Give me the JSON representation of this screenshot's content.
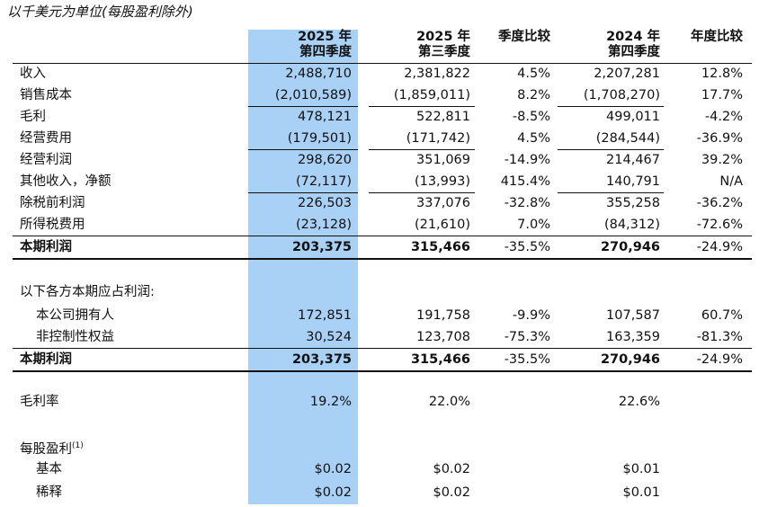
{
  "caption": "以千美元为单位(每股盈利除外)",
  "columns": [
    {
      "line1": "2025 年",
      "line2": "第四季度"
    },
    {
      "line1": "2025 年",
      "line2": "第三季度"
    },
    {
      "line1": "季度比较",
      "line2": ""
    },
    {
      "line1": "2024 年",
      "line2": "第四季度"
    },
    {
      "line1": "年度比较",
      "line2": ""
    }
  ],
  "rows": [
    {
      "label": "收入",
      "v": [
        "2,488,710",
        "2,381,822",
        "4.5%",
        "2,207,281",
        "12.8%"
      ]
    },
    {
      "label": "销售成本",
      "v": [
        "(2,010,589)",
        "(1,859,011)",
        "8.2%",
        "(1,708,270)",
        "17.7%"
      ]
    },
    {
      "label": "毛利",
      "v": [
        "478,121",
        "522,811",
        "-8.5%",
        "499,011",
        "-4.2%"
      ]
    },
    {
      "label": "经营费用",
      "v": [
        "(179,501)",
        "(171,742)",
        "4.5%",
        "(284,544)",
        "-36.9%"
      ]
    },
    {
      "label": "经营利润",
      "v": [
        "298,620",
        "351,069",
        "-14.9%",
        "214,467",
        "39.2%"
      ]
    },
    {
      "label": "其他收入，净额",
      "v": [
        "(72,117)",
        "(13,993)",
        "415.4%",
        "140,791",
        "N/A"
      ]
    },
    {
      "label": "除税前利润",
      "v": [
        "226,503",
        "337,076",
        "-32.8%",
        "355,258",
        "-36.2%"
      ]
    },
    {
      "label": "所得税费用",
      "v": [
        "(23,128)",
        "(21,610)",
        "7.0%",
        "(84,312)",
        "-72.6%"
      ]
    },
    {
      "label": "本期利润",
      "v": [
        "203,375",
        "315,466",
        "-35.5%",
        "270,946",
        "-24.9%"
      ]
    },
    {
      "label": "以下各方本期应占利润:",
      "v": [
        "",
        "",
        "",
        "",
        ""
      ]
    },
    {
      "label": "本公司拥有人",
      "v": [
        "172,851",
        "191,758",
        "-9.9%",
        "107,587",
        "60.7%"
      ]
    },
    {
      "label": "非控制性权益",
      "v": [
        "30,524",
        "123,708",
        "-75.3%",
        "163,359",
        "-81.3%"
      ]
    },
    {
      "label": "本期利润",
      "v": [
        "203,375",
        "315,466",
        "-35.5%",
        "270,946",
        "-24.9%"
      ]
    },
    {
      "label": "毛利率",
      "v": [
        "19.2%",
        "22.0%",
        "",
        "22.6%",
        ""
      ]
    },
    {
      "label": "每股盈利",
      "sup": "(1)",
      "v": [
        "",
        "",
        "",
        "",
        ""
      ]
    },
    {
      "label": "基本",
      "v": [
        "$0.02",
        "$0.02",
        "",
        "$0.01",
        ""
      ]
    },
    {
      "label": "稀释",
      "v": [
        "$0.02",
        "$0.02",
        "",
        "$0.01",
        ""
      ]
    }
  ]
}
